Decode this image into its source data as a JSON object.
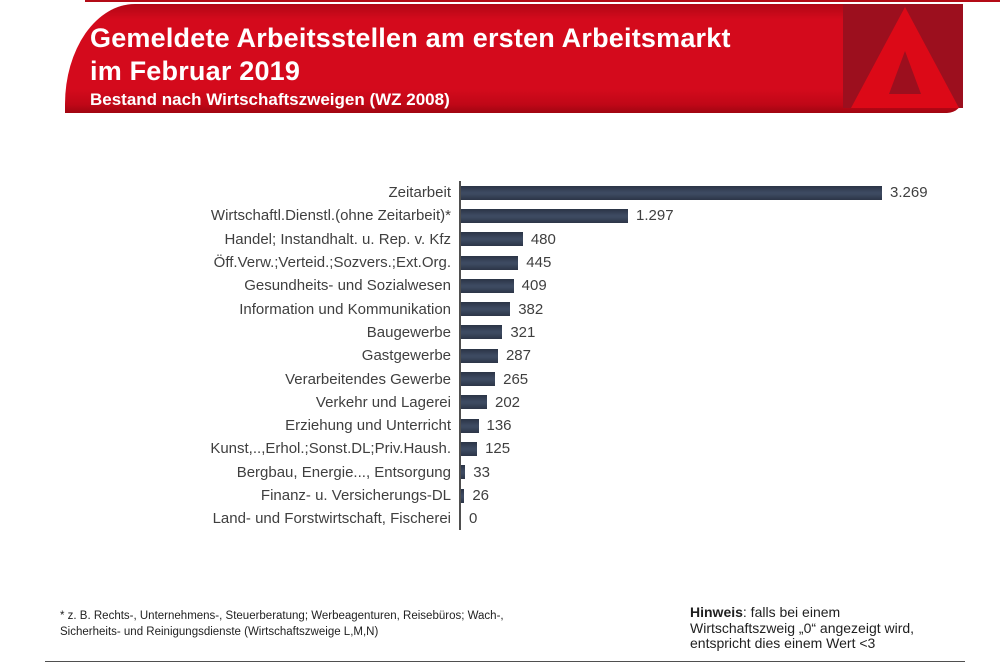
{
  "header": {
    "title_line1": "Gemeldete Arbeitsstellen am ersten Arbeitsmarkt",
    "title_line2": "im Februar 2019",
    "subtitle": "Bestand nach Wirtschaftszweigen (WZ 2008)",
    "logo_name": "bundesagentur-fuer-arbeit-logo",
    "colors": {
      "band_red": "#d40a1c",
      "logo_background_dark_red": "#9c0f1e",
      "logo_a_bright_red": "#dc0917"
    }
  },
  "chart_data": {
    "type": "bar",
    "orientation": "horizontal",
    "title": "Gemeldete Arbeitsstellen am ersten Arbeitsmarkt im Februar 2019",
    "subtitle": "Bestand nach Wirtschaftszweigen (WZ 2008)",
    "categories": [
      "Zeitarbeit",
      "Wirtschaftl.Dienstl.(ohne Zeitarbeit)*",
      "Handel; Instandhalt. u. Rep. v. Kfz",
      "Öff.Verw.;Verteid.;Sozvers.;Ext.Org.",
      "Gesundheits- und Sozialwesen",
      "Information und Kommunikation",
      "Baugewerbe",
      "Gastgewerbe",
      "Verarbeitendes Gewerbe",
      "Verkehr und Lagerei",
      "Erziehung und Unterricht",
      "Kunst,..,Erhol.;Sonst.DL;Priv.Haush.",
      "Bergbau, Energie..., Entsorgung",
      "Finanz- u. Versicherungs-DL",
      "Land- und Forstwirtschaft, Fischerei"
    ],
    "values": [
      3269,
      1297,
      480,
      445,
      409,
      382,
      321,
      287,
      265,
      202,
      136,
      125,
      33,
      26,
      0
    ],
    "value_labels": [
      "3.269",
      "1.297",
      "480",
      "445",
      "409",
      "382",
      "321",
      "287",
      "265",
      "202",
      "136",
      "125",
      "33",
      "26",
      "0"
    ],
    "bar_color": "#333e52",
    "xlim": [
      0,
      3400
    ],
    "grid": false,
    "legend": null,
    "value_labels_position": "end-of-bar"
  },
  "footnote": {
    "line1": "* z. B. Rechts-, Unternehmens-, Steuerberatung; Werbeagenturen, Reisebüros; Wach-,",
    "line2": "Sicherheits- und Reinigungsdienste (Wirtschaftszweige L,M,N)"
  },
  "hinweis": {
    "label": "Hinweis",
    "after_label": ": falls bei einem",
    "line2": "Wirtschaftszweig „0“ angezeigt wird,",
    "line3": "entspricht dies einem Wert <3"
  }
}
